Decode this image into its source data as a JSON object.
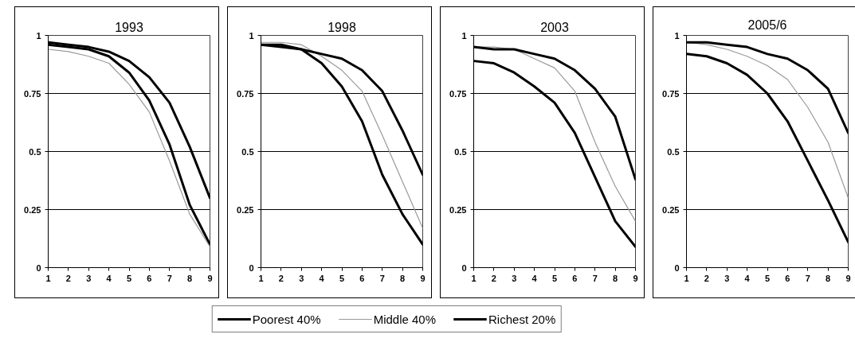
{
  "chart_data": [
    {
      "type": "line",
      "title": "1993",
      "categories": [
        "1",
        "2",
        "3",
        "4",
        "5",
        "6",
        "7",
        "8",
        "9"
      ],
      "ylim": [
        0,
        1
      ],
      "yticks": [
        0,
        0.25,
        0.5,
        0.75,
        1
      ],
      "grid": "y",
      "legend": "bottom",
      "series": [
        {
          "name": "Poorest 40%",
          "color": "#000000",
          "values": [
            0.96,
            0.95,
            0.94,
            0.91,
            0.84,
            0.72,
            0.53,
            0.27,
            0.1
          ]
        },
        {
          "name": "Middle 40%",
          "color": "#999999",
          "values": [
            0.94,
            0.93,
            0.91,
            0.88,
            0.79,
            0.67,
            0.46,
            0.23,
            0.09
          ]
        },
        {
          "name": "Richest 20%",
          "color": "#000000",
          "values": [
            0.97,
            0.96,
            0.95,
            0.93,
            0.89,
            0.82,
            0.71,
            0.52,
            0.3
          ]
        }
      ]
    },
    {
      "type": "line",
      "title": "1998",
      "categories": [
        "1",
        "2",
        "3",
        "4",
        "5",
        "6",
        "7",
        "8",
        "9"
      ],
      "ylim": [
        0,
        1
      ],
      "yticks": [
        0,
        0.25,
        0.5,
        0.75,
        1
      ],
      "grid": "y",
      "series": [
        {
          "color": "#000000",
          "values": [
            0.96,
            0.95,
            0.94,
            0.88,
            0.78,
            0.63,
            0.4,
            0.23,
            0.1
          ]
        },
        {
          "color": "#999999",
          "values": [
            0.97,
            0.97,
            0.96,
            0.91,
            0.85,
            0.76,
            0.57,
            0.37,
            0.17
          ]
        },
        {
          "color": "#000000",
          "values": [
            0.96,
            0.96,
            0.94,
            0.92,
            0.9,
            0.85,
            0.76,
            0.59,
            0.4
          ]
        }
      ]
    },
    {
      "type": "line",
      "title": "2003",
      "categories": [
        "1",
        "2",
        "3",
        "4",
        "5",
        "6",
        "7",
        "8",
        "9"
      ],
      "ylim": [
        0,
        1
      ],
      "yticks": [
        0,
        0.25,
        0.5,
        0.75,
        1
      ],
      "grid": "y",
      "series": [
        {
          "color": "#000000",
          "values": [
            0.89,
            0.88,
            0.84,
            0.78,
            0.71,
            0.58,
            0.39,
            0.2,
            0.09
          ]
        },
        {
          "color": "#999999",
          "values": [
            0.95,
            0.95,
            0.94,
            0.9,
            0.86,
            0.76,
            0.54,
            0.35,
            0.2
          ]
        },
        {
          "color": "#000000",
          "values": [
            0.95,
            0.94,
            0.94,
            0.92,
            0.9,
            0.85,
            0.77,
            0.65,
            0.38
          ]
        }
      ]
    },
    {
      "type": "line",
      "title": "2005/6",
      "categories": [
        "1",
        "2",
        "3",
        "4",
        "5",
        "6",
        "7",
        "8",
        "9"
      ],
      "ylim": [
        0,
        1
      ],
      "yticks": [
        0,
        0.25,
        0.5,
        0.75,
        1
      ],
      "grid": "y",
      "series": [
        {
          "color": "#000000",
          "values": [
            0.92,
            0.91,
            0.88,
            0.83,
            0.75,
            0.63,
            0.46,
            0.29,
            0.11
          ]
        },
        {
          "color": "#999999",
          "values": [
            0.97,
            0.96,
            0.94,
            0.91,
            0.87,
            0.81,
            0.69,
            0.54,
            0.3
          ]
        },
        {
          "color": "#000000",
          "values": [
            0.97,
            0.97,
            0.96,
            0.95,
            0.92,
            0.9,
            0.85,
            0.77,
            0.58
          ]
        }
      ]
    }
  ]
}
